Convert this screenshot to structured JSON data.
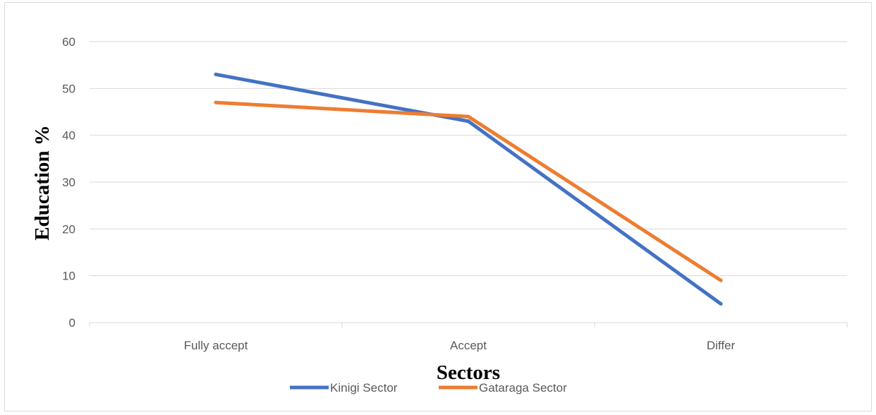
{
  "chart_data": {
    "type": "line",
    "categories": [
      "Fully accept",
      "Accept",
      "Differ"
    ],
    "series": [
      {
        "name": "Kinigi Sector",
        "values": [
          53,
          43,
          4
        ],
        "color": "#4472C4"
      },
      {
        "name": "Gataraga Sector",
        "values": [
          47,
          44,
          9
        ],
        "color": "#ED7D31"
      }
    ],
    "xlabel": "Sectors",
    "ylabel": "Education %",
    "ylim": [
      0,
      60
    ],
    "yticks": [
      0,
      10,
      20,
      30,
      40,
      50,
      60
    ],
    "grid": true,
    "legend_position": "bottom"
  }
}
